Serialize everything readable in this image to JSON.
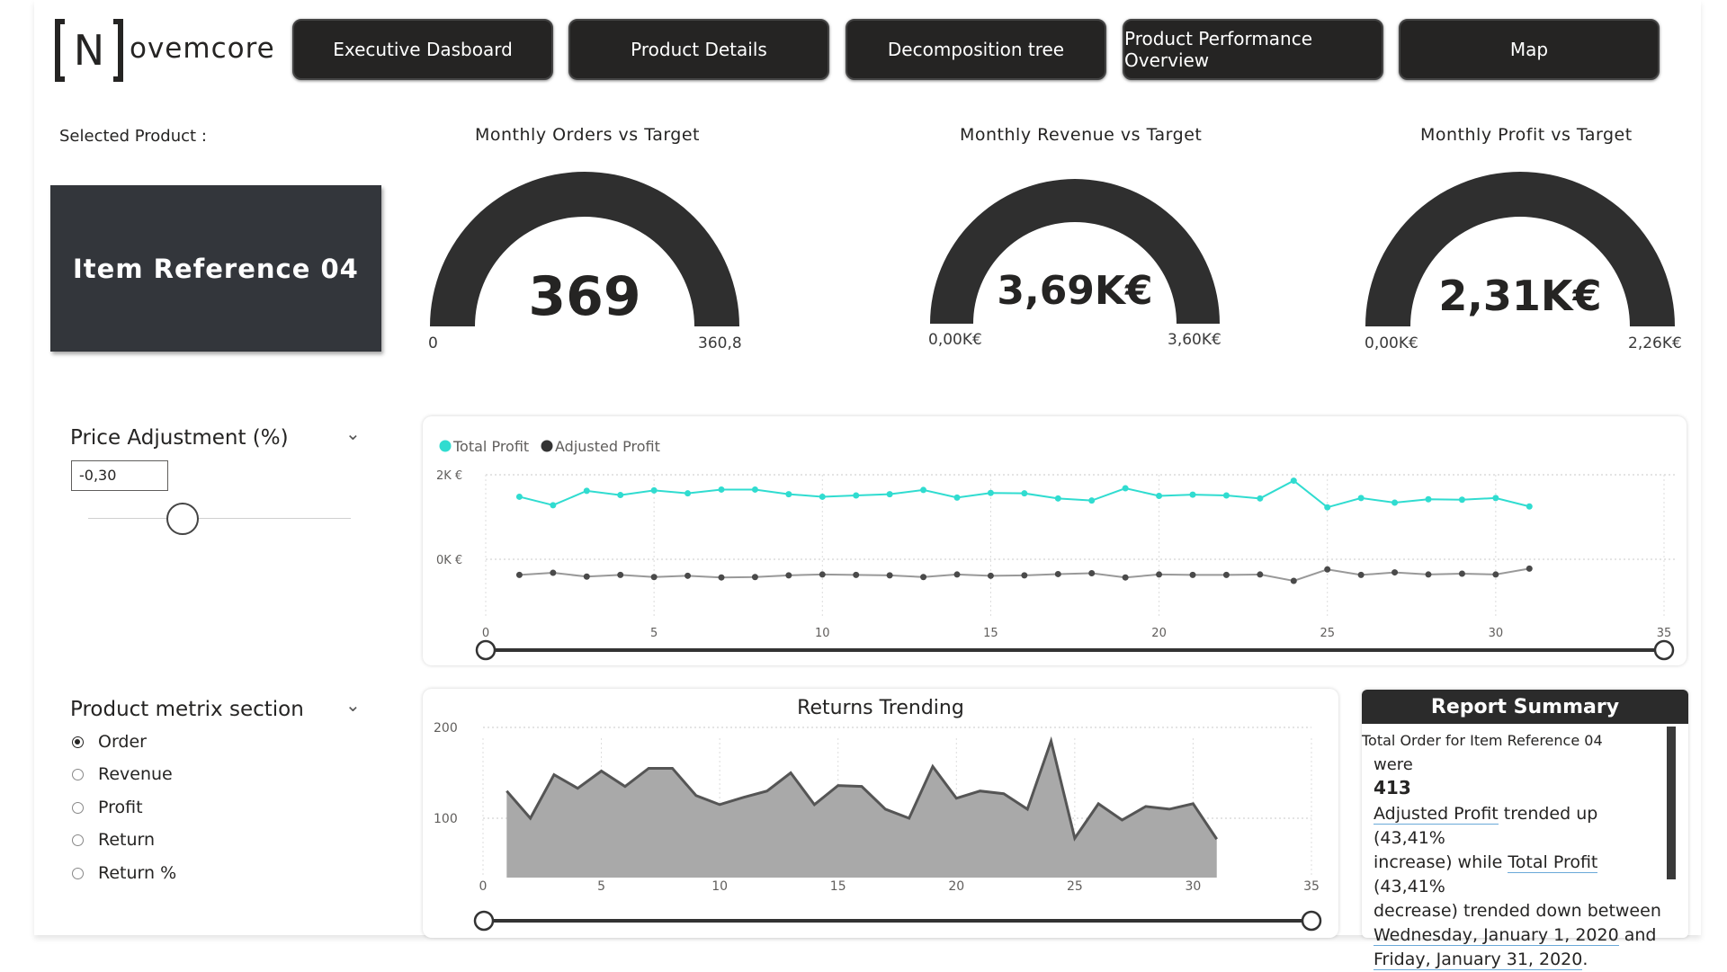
{
  "brand": {
    "logo_letter": "N",
    "name": "ovemcore"
  },
  "nav": [
    {
      "label": "Executive Dasboard"
    },
    {
      "label": "Product Details"
    },
    {
      "label": "Decomposition tree"
    },
    {
      "label": "Product Performance Overview"
    },
    {
      "label": "Map"
    }
  ],
  "selected_product": {
    "label": "Selected Product :",
    "value": "Item Reference 04"
  },
  "gauges": [
    {
      "title": "Monthly Orders vs Target",
      "value_text": "369",
      "min_text": "0",
      "max_text": "360,8",
      "value": 369,
      "min": 0,
      "max": 360.8
    },
    {
      "title": "Monthly Revenue vs Target",
      "value_text": "3,69K€",
      "min_text": "0,00K€",
      "max_text": "3,60K€",
      "value": 3.69,
      "min": 0,
      "max": 3.6
    },
    {
      "title": "Monthly Profit vs Target",
      "value_text": "2,31K€",
      "min_text": "0,00K€",
      "max_text": "2,26K€",
      "value": 2.31,
      "min": 0,
      "max": 2.26
    }
  ],
  "price_adjustment": {
    "title": "Price Adjustment (%)",
    "value": "-0,30",
    "slider_fraction": 0.36
  },
  "metric_section": {
    "title": "Product metrix section",
    "options": [
      {
        "label": "Order",
        "selected": true
      },
      {
        "label": "Revenue",
        "selected": false
      },
      {
        "label": "Profit",
        "selected": false
      },
      {
        "label": "Return",
        "selected": false
      },
      {
        "label": "Return %",
        "selected": false
      }
    ]
  },
  "colors": {
    "total_profit": "#30dcd0",
    "adjusted_profit": "#333333",
    "area_fill": "#a9a9a9",
    "area_line": "#555555"
  },
  "chart_data": [
    {
      "type": "line",
      "title": "",
      "legend": [
        "Total Profit",
        "Adjusted Profit"
      ],
      "legend_position": "top-left",
      "x": [
        1,
        2,
        3,
        4,
        5,
        6,
        7,
        8,
        9,
        10,
        11,
        12,
        13,
        14,
        15,
        16,
        17,
        18,
        19,
        20,
        21,
        22,
        23,
        24,
        25,
        26,
        27,
        28,
        29,
        30,
        31
      ],
      "series": [
        {
          "name": "Total Profit",
          "values": [
            1480,
            1280,
            1620,
            1520,
            1630,
            1560,
            1650,
            1650,
            1540,
            1480,
            1510,
            1540,
            1640,
            1460,
            1570,
            1560,
            1440,
            1390,
            1680,
            1500,
            1530,
            1510,
            1440,
            1860,
            1230,
            1450,
            1340,
            1420,
            1410,
            1450,
            1250
          ]
        },
        {
          "name": "Adjusted Profit",
          "values": [
            -370,
            -320,
            -410,
            -370,
            -420,
            -390,
            -430,
            -420,
            -380,
            -360,
            -370,
            -380,
            -420,
            -360,
            -390,
            -380,
            -350,
            -330,
            -430,
            -360,
            -370,
            -370,
            -360,
            -510,
            -240,
            -370,
            -310,
            -360,
            -340,
            -360,
            -220
          ]
        }
      ],
      "xlim": [
        0,
        35
      ],
      "ylim": [
        -1400,
        2000
      ],
      "yticks": [
        "2K €",
        "0K €"
      ],
      "xticks": [
        0,
        5,
        10,
        15,
        20,
        25,
        30,
        35
      ],
      "grid": true
    },
    {
      "type": "area",
      "title": "Returns Trending",
      "x": [
        1,
        2,
        3,
        4,
        5,
        6,
        7,
        8,
        9,
        10,
        11,
        12,
        13,
        14,
        15,
        16,
        17,
        18,
        19,
        20,
        21,
        22,
        23,
        24,
        25,
        26,
        27,
        28,
        29,
        30,
        31
      ],
      "values": [
        130,
        100,
        148,
        133,
        152,
        135,
        155,
        155,
        125,
        115,
        123,
        130,
        150,
        115,
        136,
        135,
        110,
        100,
        157,
        122,
        130,
        127,
        110,
        185,
        78,
        116,
        98,
        113,
        110,
        116,
        77
      ],
      "xlim": [
        0,
        35
      ],
      "ylim": [
        50,
        210
      ],
      "yticks": [
        200,
        100
      ],
      "xticks": [
        0,
        5,
        10,
        15,
        20,
        25,
        30,
        35
      ],
      "grid": true
    }
  ],
  "summary": {
    "title": "Report Summary",
    "line1": "Total Order for Item Reference 04",
    "line2": "were",
    "total": "413",
    "p1a": "Adjusted Profit",
    "p1b": " trended up (43,41%",
    "p2": "increase) while ",
    "p2b": "Total Profit",
    "p2c": " (43,41%",
    "p3": "decrease) trended down between",
    "p4": "Wednesday, January 1, 2020",
    "p4b": " and",
    "p5": "Friday, January 31, 2020",
    "p5b": "."
  }
}
